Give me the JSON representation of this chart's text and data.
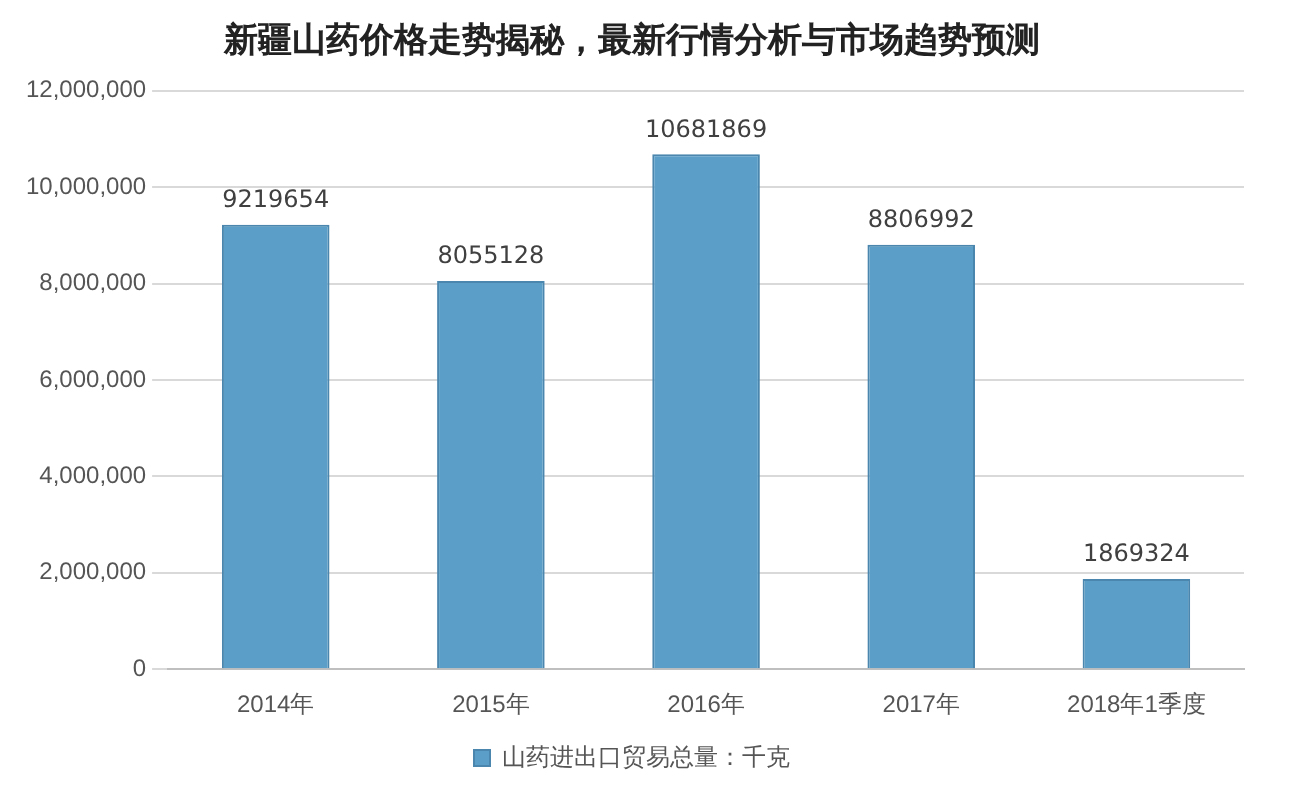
{
  "chart_data": {
    "type": "bar",
    "title": "新疆山药价格走势揭秘，最新行情分析与市场趋势预测",
    "categories": [
      "2014年",
      "2015年",
      "2016年",
      "2017年",
      "2018年1季度"
    ],
    "series": [
      {
        "name": "山药进出口贸易总量：千克",
        "color": "#5b9fc8",
        "values": [
          9219654,
          8055128,
          10681869,
          8806992,
          1869324
        ]
      }
    ],
    "ylim": [
      0,
      12000000
    ],
    "yticks": [
      {
        "value": 0,
        "label": "0"
      },
      {
        "value": 2000000,
        "label": "2,000,000"
      },
      {
        "value": 4000000,
        "label": "4,000,000"
      },
      {
        "value": 6000000,
        "label": "6,000,000"
      },
      {
        "value": 8000000,
        "label": "8,000,000"
      },
      {
        "value": 10000000,
        "label": "10,000,000"
      },
      {
        "value": 12000000,
        "label": "12,000,000"
      }
    ],
    "grid": "y",
    "legend": "bottom",
    "data_labels": true
  }
}
